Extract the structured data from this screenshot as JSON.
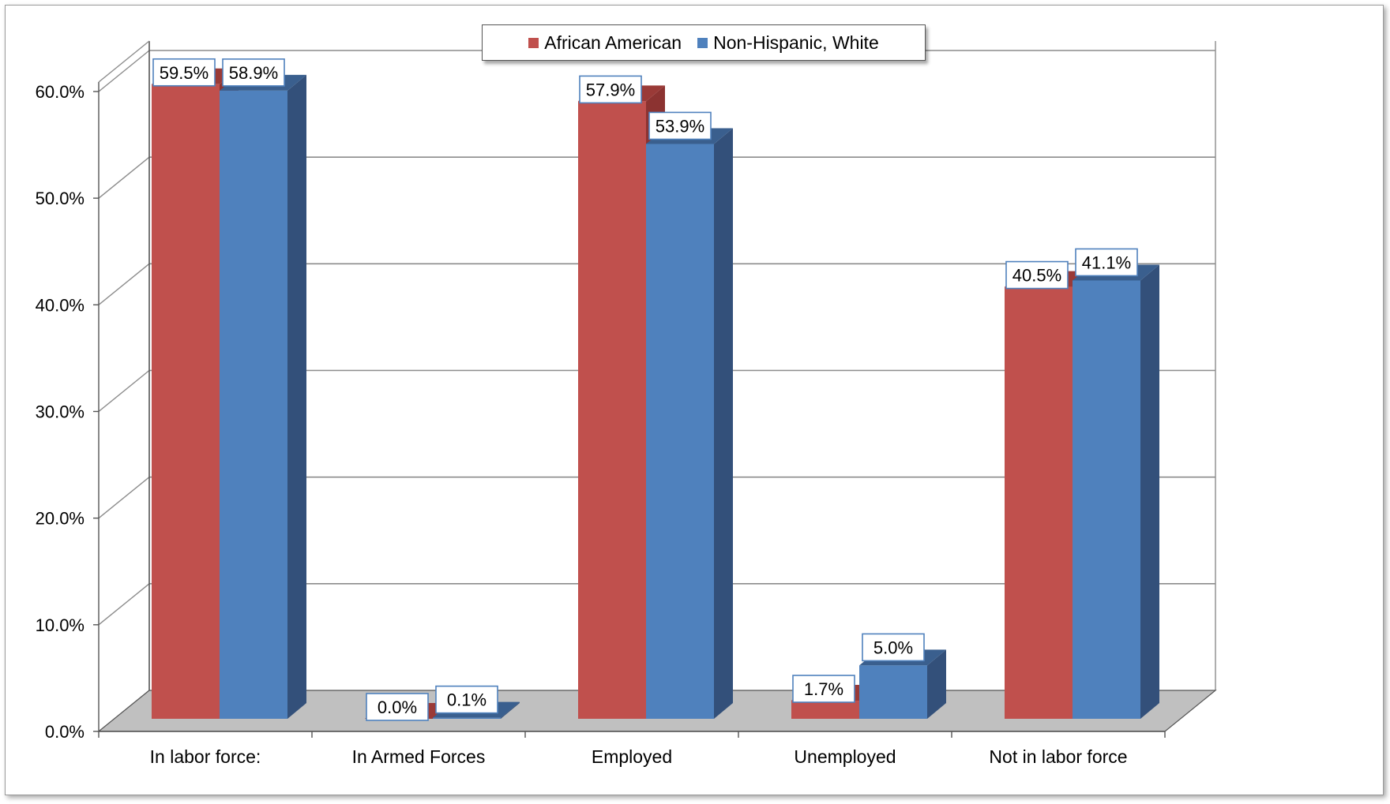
{
  "chart_data": {
    "type": "bar",
    "categories": [
      "In labor force:",
      "In Armed Forces",
      "Employed",
      "Unemployed",
      "Not in labor force"
    ],
    "series": [
      {
        "name": "African American",
        "values": [
          59.5,
          0.0,
          57.9,
          1.7,
          40.5
        ],
        "labels": [
          "59.5%",
          "0.0%",
          "57.9%",
          "1.7%",
          "40.5%"
        ],
        "color": "#c0504d",
        "side_color": "#8c3331",
        "top_color": "#9a3a37"
      },
      {
        "name": "Non-Hispanic, White",
        "values": [
          58.9,
          0.1,
          53.9,
          5.0,
          41.1
        ],
        "labels": [
          "58.9%",
          "0.1%",
          "53.9%",
          "5.0%",
          "41.1%"
        ],
        "color": "#4f81bd",
        "side_color": "#33507a",
        "top_color": "#3a5f8e"
      }
    ],
    "y_ticks": [
      "0.0%",
      "10.0%",
      "20.0%",
      "30.0%",
      "40.0%",
      "50.0%",
      "60.0%"
    ],
    "ylim": [
      0,
      60
    ],
    "grid": true,
    "legend_position": "top-center",
    "style": "3d-clustered-column",
    "floor_color": "#c0c0c0",
    "gridline_color": "#8c8c8c"
  }
}
